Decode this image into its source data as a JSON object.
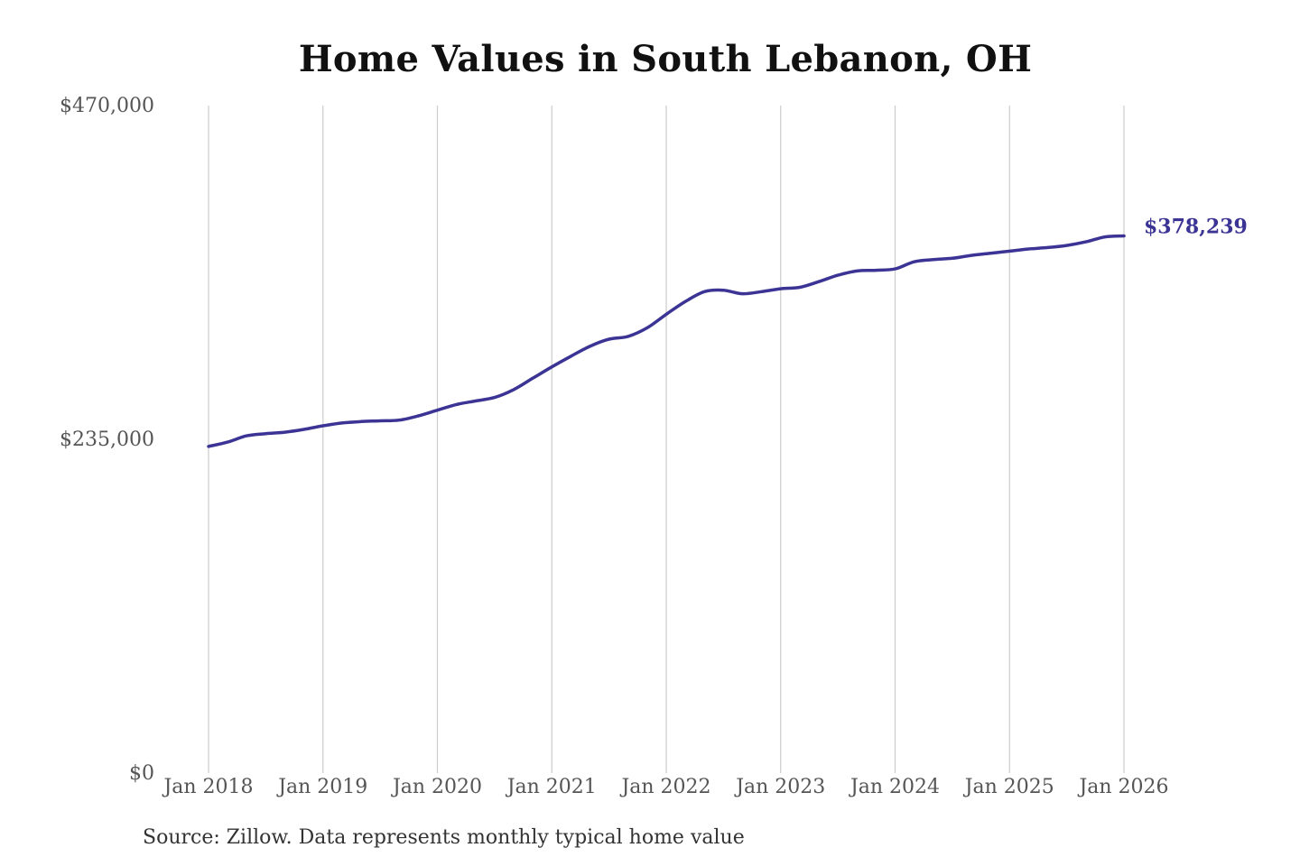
{
  "chart_data": {
    "type": "line",
    "title": "Home Values in South Lebanon, OH",
    "source": "Source: Zillow. Data represents monthly typical home value",
    "y_ticks": [
      {
        "value": 0,
        "label": "$0"
      },
      {
        "value": 235000,
        "label": "$235,000"
      },
      {
        "value": 470000,
        "label": "$470,000"
      }
    ],
    "ylim": [
      0,
      470000
    ],
    "x_ticks": [
      {
        "date": "2018-01",
        "label": "Jan 2018"
      },
      {
        "date": "2019-01",
        "label": "Jan 2019"
      },
      {
        "date": "2020-01",
        "label": "Jan 2020"
      },
      {
        "date": "2021-01",
        "label": "Jan 2021"
      },
      {
        "date": "2022-01",
        "label": "Jan 2022"
      },
      {
        "date": "2023-01",
        "label": "Jan 2023"
      },
      {
        "date": "2024-01",
        "label": "Jan 2024"
      },
      {
        "date": "2025-01",
        "label": "Jan 2025"
      },
      {
        "date": "2026-01",
        "label": "Jan 2026"
      }
    ],
    "xlim": [
      "2018-01",
      "2026-01"
    ],
    "grid": {
      "vertical": true,
      "horizontal": false
    },
    "line_color": "#3b3494",
    "end_label": "$378,239",
    "series": [
      {
        "x": [
          "2018-01",
          "2018-03",
          "2018-05",
          "2018-07",
          "2018-09",
          "2018-11",
          "2019-01",
          "2019-03",
          "2019-05",
          "2019-07",
          "2019-09",
          "2019-11",
          "2020-01",
          "2020-03",
          "2020-05",
          "2020-07",
          "2020-09",
          "2020-11",
          "2021-01",
          "2021-03",
          "2021-05",
          "2021-07",
          "2021-09",
          "2021-11",
          "2022-01",
          "2022-03",
          "2022-05",
          "2022-07",
          "2022-09",
          "2022-11",
          "2023-01",
          "2023-03",
          "2023-05",
          "2023-07",
          "2023-09",
          "2023-11",
          "2024-01",
          "2024-03",
          "2024-05",
          "2024-07",
          "2024-09",
          "2024-11",
          "2025-01",
          "2025-03",
          "2025-05",
          "2025-07",
          "2025-09",
          "2025-11",
          "2026-01"
        ],
        "y": [
          230000,
          233000,
          237500,
          239000,
          240000,
          242000,
          244500,
          246500,
          247500,
          248000,
          248500,
          251500,
          255500,
          259500,
          262000,
          264500,
          270000,
          278000,
          286000,
          293500,
          300500,
          305500,
          307500,
          313500,
          323000,
          332000,
          339000,
          340000,
          337500,
          339000,
          341000,
          342000,
          346000,
          350500,
          353500,
          354000,
          355000,
          360000,
          361500,
          362500,
          364500,
          366000,
          367500,
          369000,
          370000,
          371500,
          374000,
          377500,
          378239
        ]
      }
    ]
  }
}
